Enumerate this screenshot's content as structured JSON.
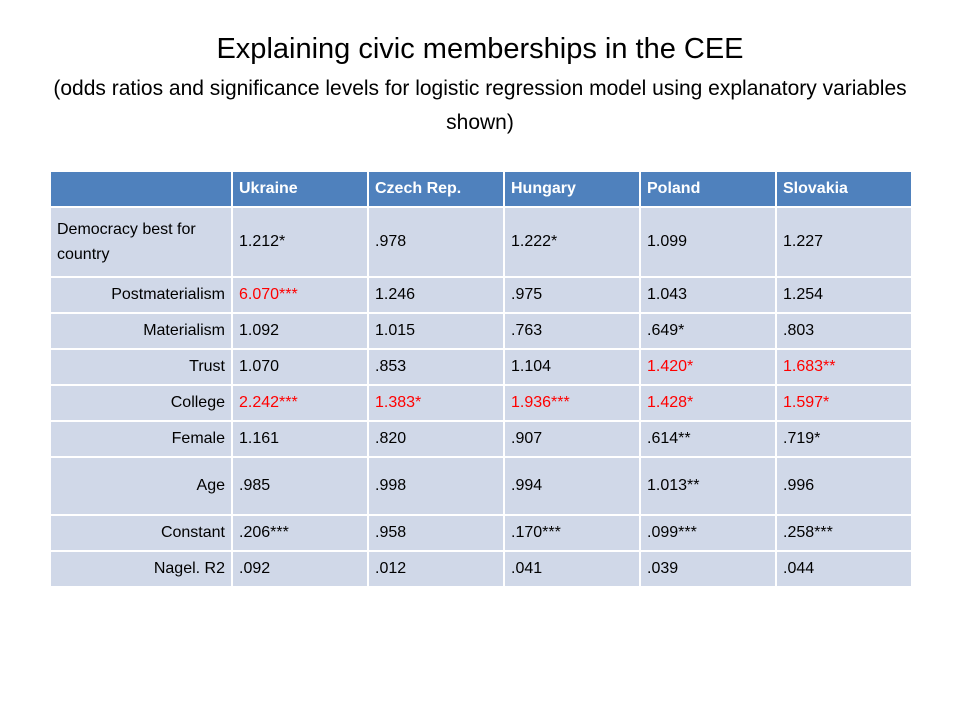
{
  "slide": {
    "title": "Explaining civic memberships in the CEE",
    "subtitle": "(odds ratios and significance levels for logistic regression model using explanatory variables shown)"
  },
  "table": {
    "header_blank": "",
    "columns": [
      "Ukraine",
      "Czech Rep.",
      "Hungary",
      "Poland",
      "Slovakia"
    ],
    "rows": [
      {
        "label": "Democracy best for country",
        "cells": [
          "1.212*",
          ".978",
          "1.222*",
          "1.099",
          "1.227"
        ]
      },
      {
        "label": "Postmaterialism",
        "cells": [
          "6.070***",
          "1.246",
          ".975",
          "1.043",
          "1.254"
        ]
      },
      {
        "label": "Materialism",
        "cells": [
          "1.092",
          "1.015",
          ".763",
          ".649*",
          ".803"
        ]
      },
      {
        "label": "Trust",
        "cells": [
          "1.070",
          ".853",
          "1.104",
          "1.420*",
          "1.683**"
        ]
      },
      {
        "label": "College",
        "cells": [
          "2.242***",
          "1.383*",
          "1.936***",
          "1.428*",
          "1.597*"
        ]
      },
      {
        "label": "Female",
        "cells": [
          "1.161",
          ".820",
          ".907",
          ".614**",
          ".719*"
        ]
      },
      {
        "label": "Age",
        "cells": [
          ".985",
          ".998",
          ".994",
          "1.013**",
          ".996"
        ]
      },
      {
        "label": "Constant",
        "cells": [
          ".206***",
          ".958",
          ".170***",
          ".099***",
          ".258***"
        ]
      },
      {
        "label": "Nagel. R2",
        "cells": [
          ".092",
          ".012",
          ".041",
          ".039",
          ".044"
        ]
      }
    ]
  },
  "colors": {
    "header_bg": "#4f81bd",
    "cell_bg": "#d0d8e8",
    "highlight_text": "#ff0000"
  }
}
